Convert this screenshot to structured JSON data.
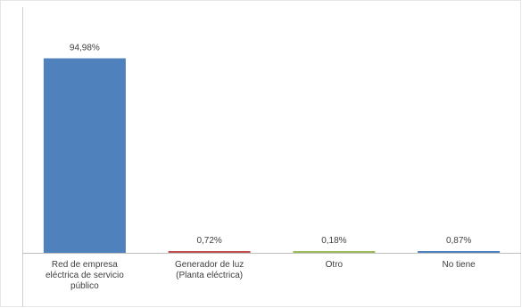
{
  "chart_data": {
    "type": "bar",
    "categories": [
      [
        "Red de empresa",
        "eléctrica de servicio",
        "público"
      ],
      [
        "Generador de luz",
        "(Planta eléctrica)"
      ],
      [
        "Otro"
      ],
      [
        "No tiene"
      ]
    ],
    "values": [
      94.98,
      0.72,
      0.18,
      0.87
    ],
    "data_labels": [
      "94,98%",
      "0,72%",
      "0,18%",
      "0,87%"
    ],
    "colors": [
      "#4f81bd",
      "#c0504d",
      "#9bbb59",
      "#4f81bd"
    ],
    "ylim": [
      0,
      100
    ],
    "grid": false,
    "legend": "none"
  }
}
